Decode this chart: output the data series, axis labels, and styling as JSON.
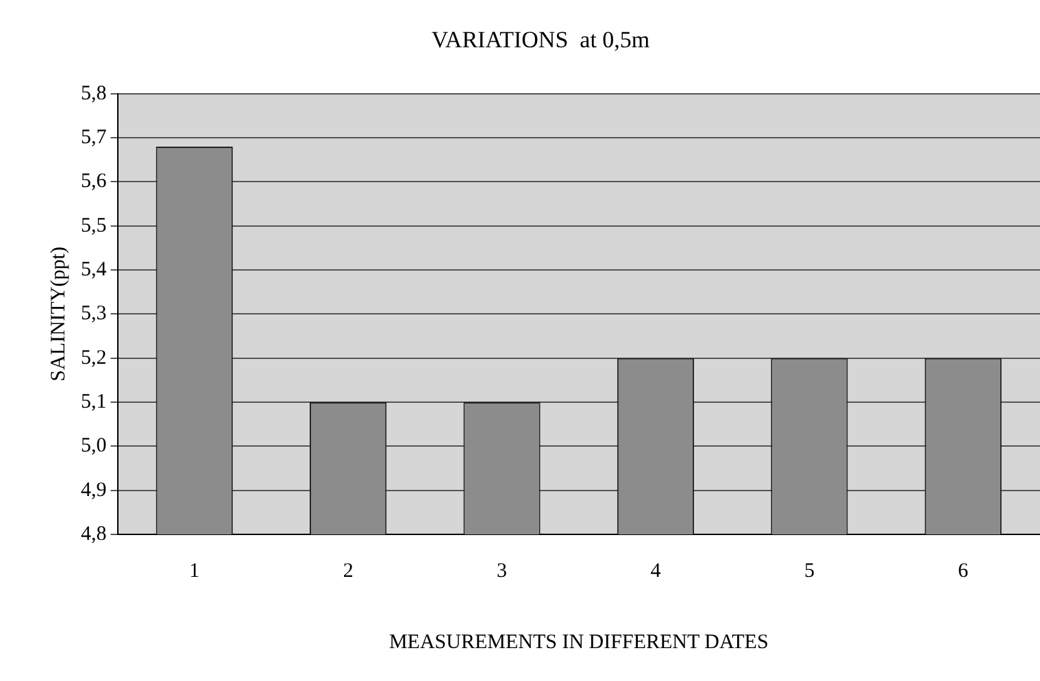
{
  "chart_data": {
    "type": "bar",
    "title": "VARIATIONS  at 0,5m",
    "xlabel": "MEASUREMENTS IN DIFFERENT DATES",
    "ylabel": "SALINITY(ppt)",
    "categories": [
      "1",
      "2",
      "3",
      "4",
      "5",
      "6"
    ],
    "values": [
      5.68,
      5.1,
      5.1,
      5.2,
      5.2,
      5.2
    ],
    "color": "#8c8c8c",
    "ylim": [
      4.8,
      5.8
    ],
    "yticks": [
      {
        "value": 4.8,
        "label": "4,8"
      },
      {
        "value": 4.9,
        "label": "4,9"
      },
      {
        "value": 5.0,
        "label": "5,0"
      },
      {
        "value": 5.1,
        "label": "5,1"
      },
      {
        "value": 5.2,
        "label": "5,2"
      },
      {
        "value": 5.3,
        "label": "5,3"
      },
      {
        "value": 5.4,
        "label": "5,4"
      },
      {
        "value": 5.5,
        "label": "5,5"
      },
      {
        "value": 5.6,
        "label": "5,6"
      },
      {
        "value": 5.7,
        "label": "5,7"
      },
      {
        "value": 5.8,
        "label": "5,8"
      }
    ],
    "grid": "y",
    "legend": false
  }
}
